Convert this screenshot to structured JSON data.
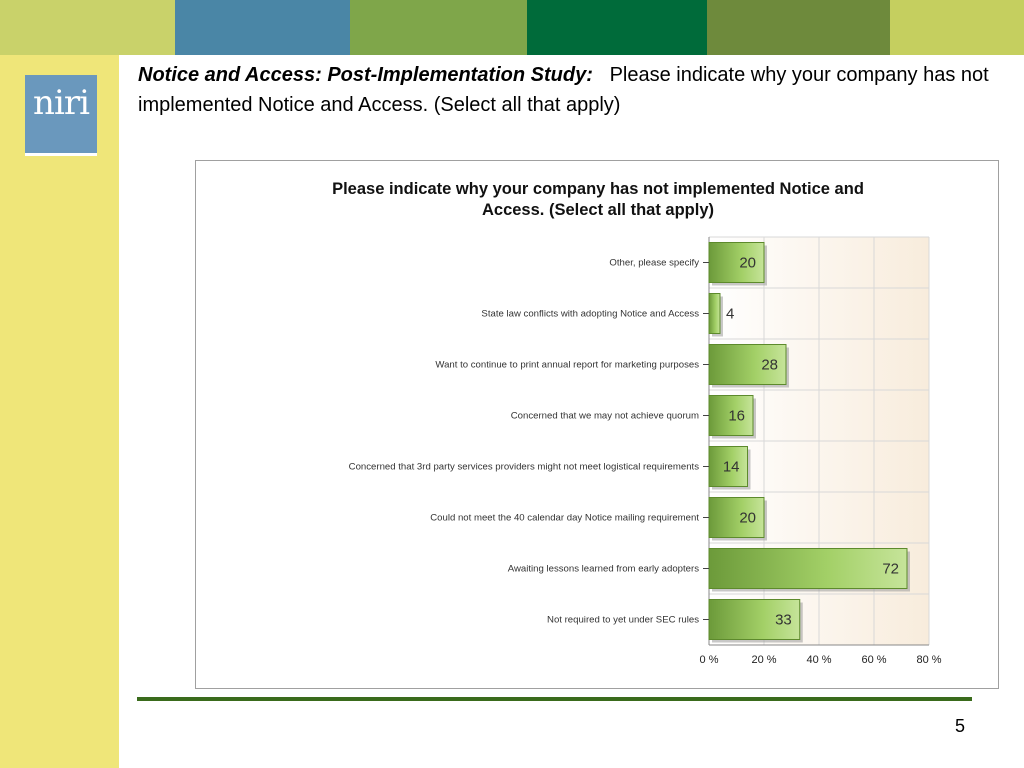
{
  "header": {
    "band_colors": [
      "#c9d26a",
      "#4a86a6",
      "#7fa64a",
      "#006b3a",
      "#6e8a3c",
      "#c5cf5f"
    ]
  },
  "logo": {
    "text": "niri",
    "color": "#6a98bd"
  },
  "slide": {
    "title_bold": "Notice and Access: Post-Implementation Study:",
    "title_rest": "Please indicate why your company has not implemented Notice and Access. (Select all that apply)",
    "page_number": "5"
  },
  "chart_data": {
    "type": "bar",
    "orientation": "horizontal",
    "title": "Please indicate why your company has not implemented Notice and Access. (Select all that apply)",
    "categories": [
      "Other, please specify",
      "State law conflicts with adopting Notice and Access",
      "Want to continue to print annual report for marketing purposes",
      "Concerned that we may not achieve quorum",
      "Concerned that 3rd party services providers might not meet logistical requirements",
      "Could not meet the 40 calendar day Notice mailing requirement",
      "Awaiting lessons learned from early adopters",
      "Not required to yet under SEC rules"
    ],
    "values": [
      20,
      4,
      28,
      16,
      14,
      20,
      72,
      33
    ],
    "xlim": [
      0,
      80
    ],
    "xticks": [
      "0 %",
      "20 %",
      "40 %",
      "60 %",
      "80 %"
    ],
    "grid": true,
    "bar_color": "#8cc63f",
    "legend": "none"
  }
}
